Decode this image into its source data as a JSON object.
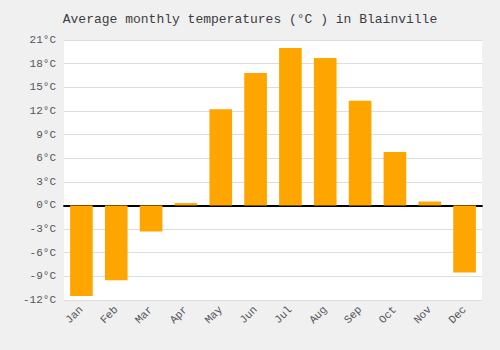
{
  "chart_data": {
    "type": "bar",
    "title": "Average monthly temperatures (°C ) in Blainville",
    "categories": [
      "Jan",
      "Feb",
      "Mar",
      "Apr",
      "May",
      "Jun",
      "Jul",
      "Aug",
      "Sep",
      "Oct",
      "Nov",
      "Dec"
    ],
    "values": [
      -11.5,
      -9.5,
      -3.3,
      0.3,
      12.2,
      16.8,
      20.0,
      18.7,
      13.3,
      6.8,
      0.5,
      -8.5
    ],
    "color": "#FFA500",
    "ylim": [
      -12,
      21
    ],
    "yticks": [
      {
        "value": -12,
        "label": "-12°C"
      },
      {
        "value": -9,
        "label": "-9°C"
      },
      {
        "value": -6,
        "label": "-6°C"
      },
      {
        "value": -3,
        "label": "-3°C"
      },
      {
        "value": 0,
        "label": "0°C"
      },
      {
        "value": 3,
        "label": "3°C"
      },
      {
        "value": 6,
        "label": "6°C"
      },
      {
        "value": 9,
        "label": "9°C"
      },
      {
        "value": 12,
        "label": "12°C"
      },
      {
        "value": 15,
        "label": "15°C"
      },
      {
        "value": 18,
        "label": "18°C"
      },
      {
        "value": 21,
        "label": "21°C"
      }
    ],
    "grid": true
  }
}
